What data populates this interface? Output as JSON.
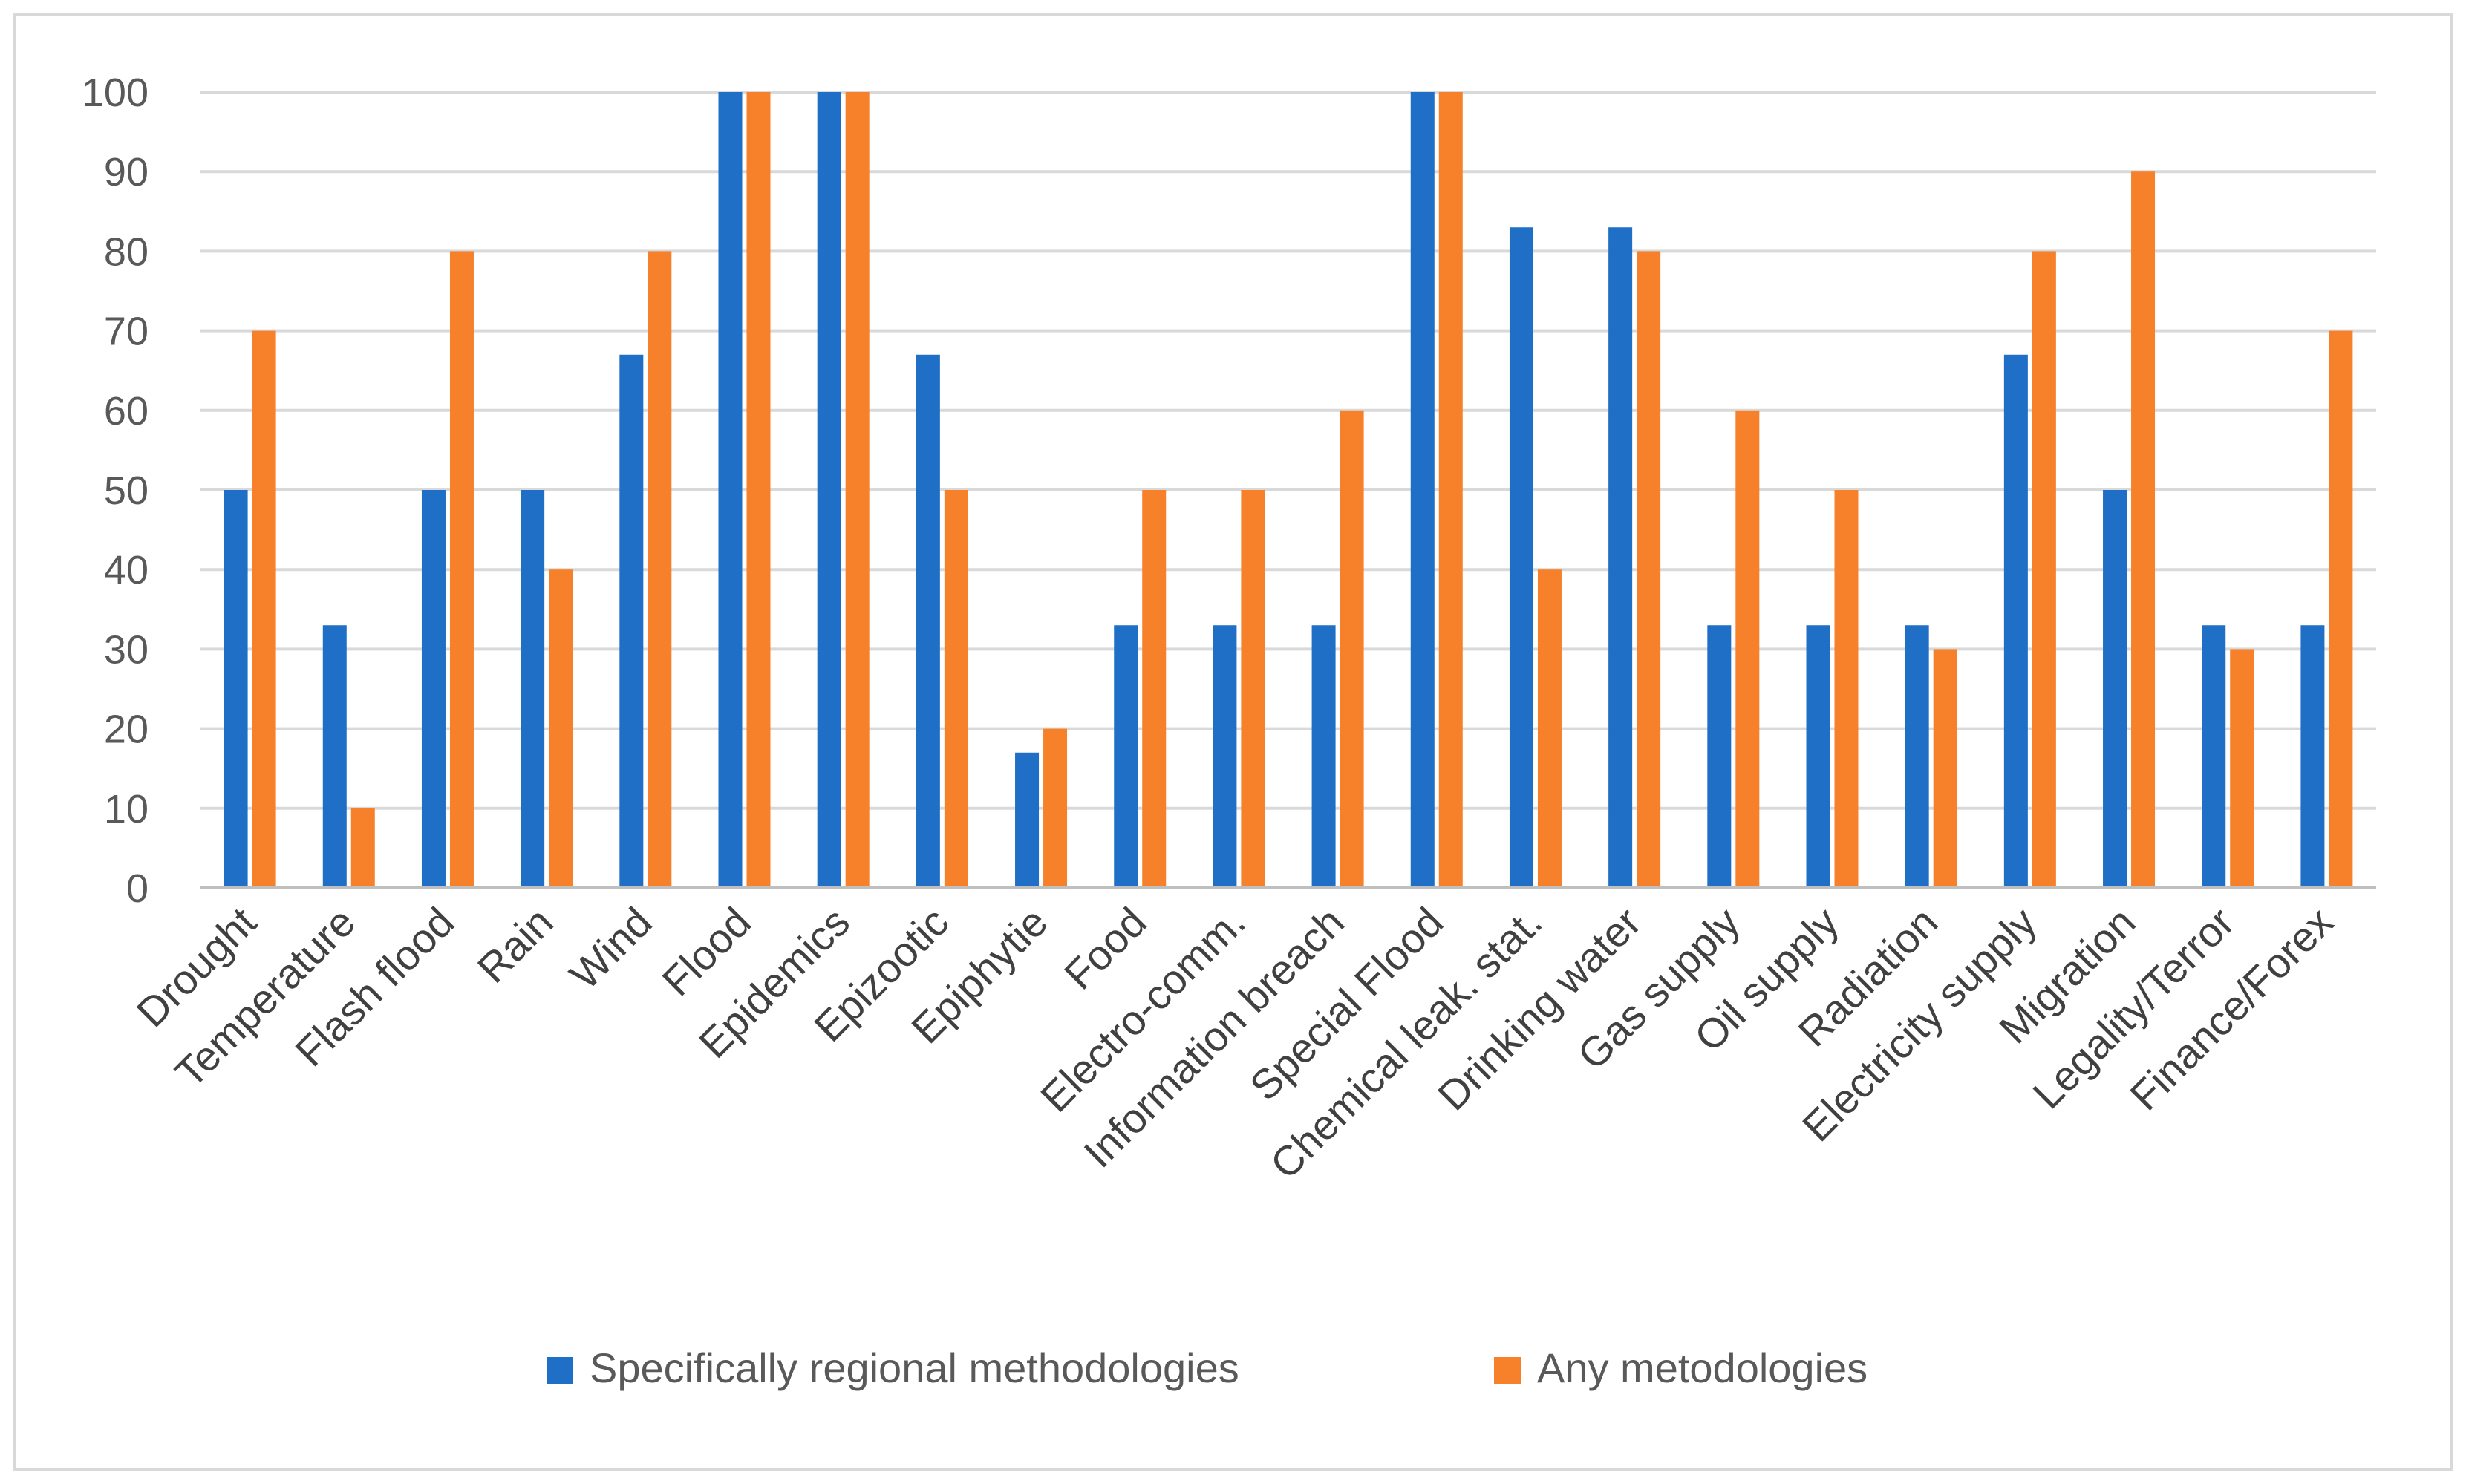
{
  "chart_data": {
    "type": "bar",
    "title": "",
    "xlabel": "",
    "ylabel": "",
    "ylim": [
      0,
      100
    ],
    "yticks": [
      0,
      10,
      20,
      30,
      40,
      50,
      60,
      70,
      80,
      90,
      100
    ],
    "grid": true,
    "legend_position": "bottom",
    "categories": [
      "Drought",
      "Temperature",
      "Flash flood",
      "Rain",
      "Wind",
      "Flood",
      "Epidemics",
      "Epizootic",
      "Epiphytie",
      "Food",
      "Electro-comm.",
      "Information breach",
      "Special Flood",
      "Chemical leak. stat.",
      "Drinking water",
      "Gas supply",
      "Oil supply",
      "Radiation",
      "Electricity supply",
      "Migration",
      "Legality/Terror",
      "Finance/Forex"
    ],
    "series": [
      {
        "name": "Specifically regional methodologies",
        "color": "#1f6fc6",
        "values": [
          50,
          33,
          50,
          50,
          67,
          100,
          100,
          67,
          17,
          33,
          33,
          33,
          100,
          83,
          83,
          33,
          33,
          33,
          67,
          50,
          33,
          33
        ]
      },
      {
        "name": "Any metodologies",
        "color": "#f7802a",
        "values": [
          70,
          10,
          80,
          40,
          80,
          100,
          100,
          50,
          20,
          50,
          50,
          60,
          100,
          40,
          80,
          60,
          50,
          30,
          80,
          90,
          30,
          70
        ]
      }
    ]
  }
}
